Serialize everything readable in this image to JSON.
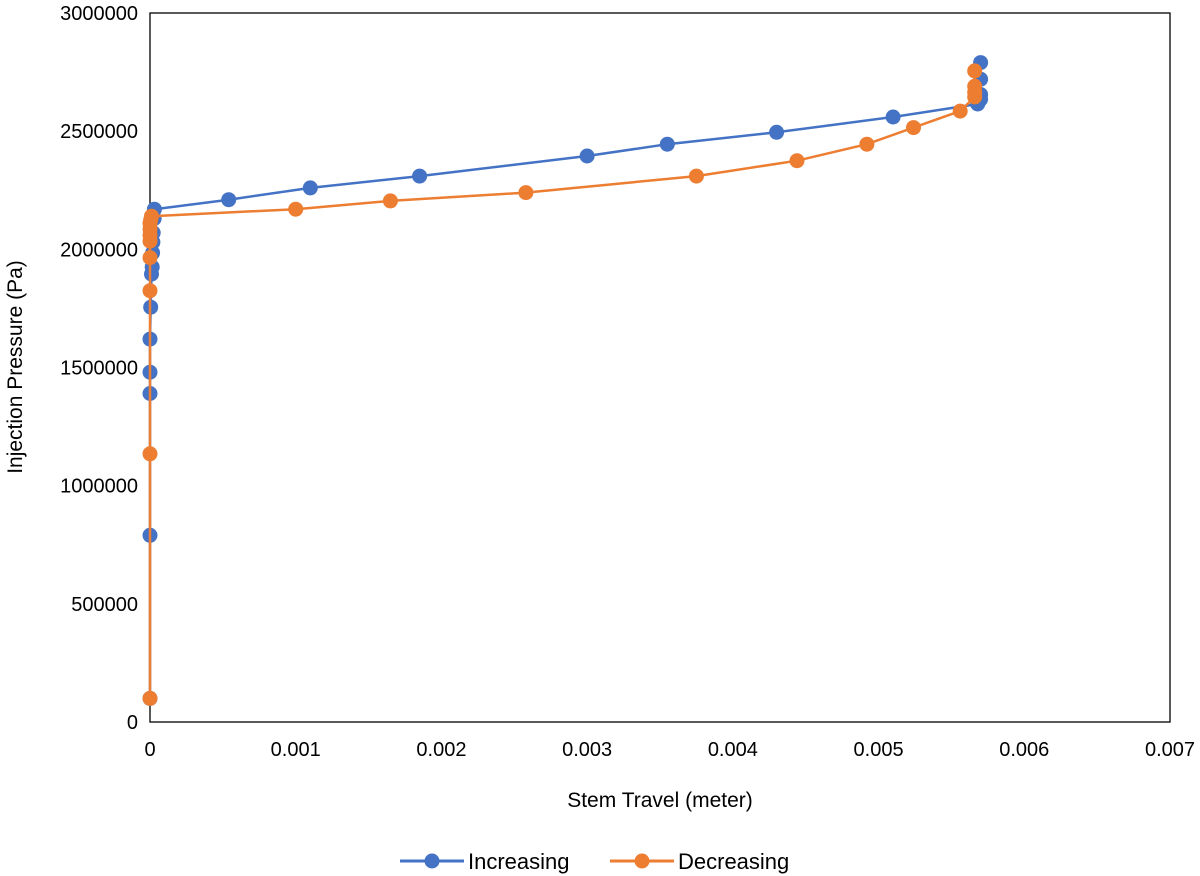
{
  "chart_data": {
    "type": "scatter",
    "title": "",
    "xlabel": "Stem Travel (meter)",
    "ylabel": "Injection Pressure (Pa)",
    "xlim": [
      0,
      0.007
    ],
    "ylim": [
      0,
      3000000
    ],
    "x_ticks": [
      0,
      0.001,
      0.002,
      0.003,
      0.004,
      0.005,
      0.006,
      0.007
    ],
    "x_tick_labels": [
      "0",
      "0.001",
      "0.002",
      "0.003",
      "0.004",
      "0.005",
      "0.006",
      "0.007"
    ],
    "y_ticks": [
      0,
      500000,
      1000000,
      1500000,
      2000000,
      2500000,
      3000000
    ],
    "y_tick_labels": [
      "0",
      "500000",
      "1000000",
      "1500000",
      "2000000",
      "2500000",
      "3000000"
    ],
    "grid": false,
    "legend_position": "bottom",
    "series": [
      {
        "name": "Increasing",
        "color": "#4472C4",
        "points": [
          [
            0,
            100000
          ],
          [
            0,
            790000
          ],
          [
            0,
            1390000
          ],
          [
            0,
            1480000
          ],
          [
            0,
            1620000
          ],
          [
            5e-06,
            1755000
          ],
          [
            1e-05,
            1895000
          ],
          [
            1.5e-05,
            1925000
          ],
          [
            1.8e-05,
            1985000
          ],
          [
            2e-05,
            2030000
          ],
          [
            2.2e-05,
            2070000
          ],
          [
            2.8e-05,
            2130000
          ],
          [
            3e-05,
            2170000
          ],
          [
            0.00054,
            2210000
          ],
          [
            0.0011,
            2260000
          ],
          [
            0.00185,
            2310000
          ],
          [
            0.003,
            2395000
          ],
          [
            0.00355,
            2445000
          ],
          [
            0.0043,
            2495000
          ],
          [
            0.0051,
            2560000
          ],
          [
            0.00568,
            2615000
          ],
          [
            0.0057,
            2635000
          ],
          [
            0.0057,
            2655000
          ],
          [
            0.0057,
            2720000
          ],
          [
            0.0057,
            2790000
          ]
        ]
      },
      {
        "name": "Decreasing",
        "color": "#ED7D31",
        "points": [
          [
            0.00566,
            2755000
          ],
          [
            0.00566,
            2690000
          ],
          [
            0.00566,
            2665000
          ],
          [
            0.00566,
            2645000
          ],
          [
            0.00556,
            2585000
          ],
          [
            0.00524,
            2515000
          ],
          [
            0.00492,
            2445000
          ],
          [
            0.00444,
            2375000
          ],
          [
            0.00375,
            2310000
          ],
          [
            0.00258,
            2240000
          ],
          [
            0.00165,
            2205000
          ],
          [
            0.001,
            2170000
          ],
          [
            1e-05,
            2140000
          ],
          [
            5e-06,
            2125000
          ],
          [
            0,
            2110000
          ],
          [
            0,
            2085000
          ],
          [
            0,
            2060000
          ],
          [
            0,
            2035000
          ],
          [
            0,
            1965000
          ],
          [
            0,
            1825000
          ],
          [
            0,
            1135000
          ],
          [
            0,
            100000
          ]
        ]
      }
    ]
  }
}
